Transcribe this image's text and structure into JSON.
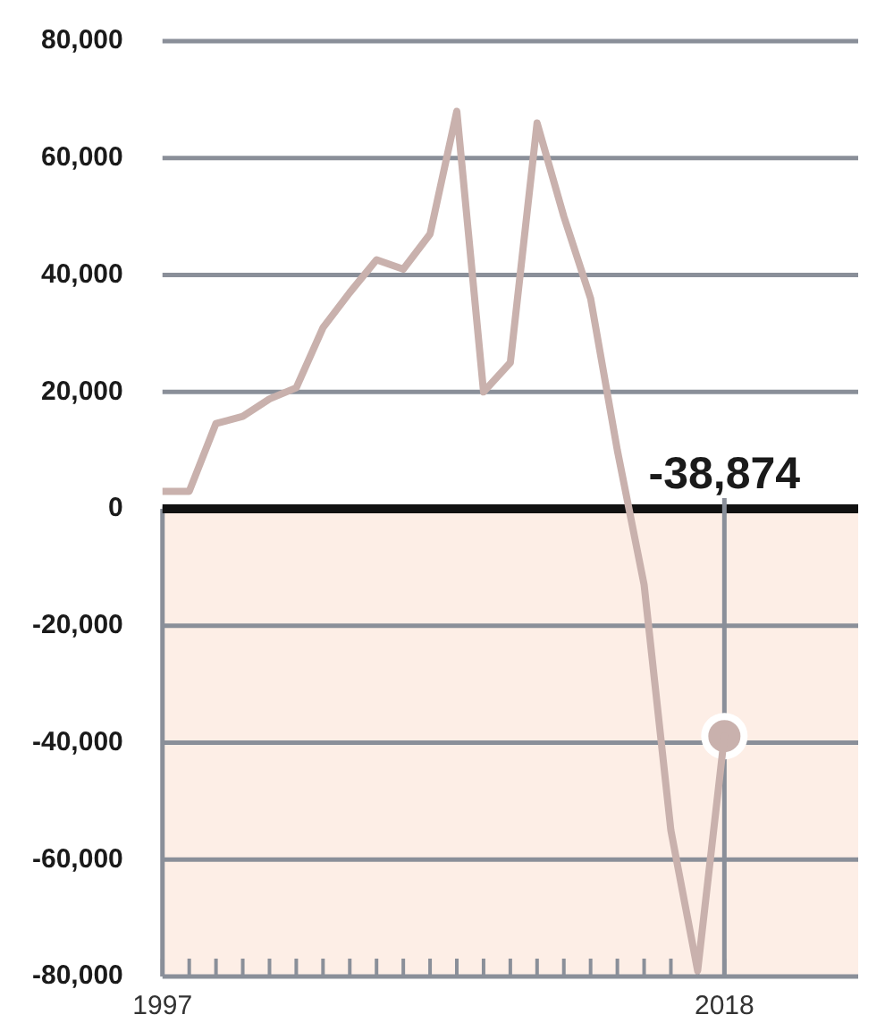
{
  "chart_data": {
    "type": "line",
    "x": [
      1997,
      1998,
      1999,
      2000,
      2001,
      2002,
      2003,
      2004,
      2005,
      2006,
      2007,
      2008,
      2009,
      2010,
      2011,
      2012,
      2013,
      2014,
      2015,
      2016,
      2017,
      2018
    ],
    "series": [
      {
        "color": "#c9b1ad",
        "values": [
          3000,
          3000,
          14600,
          15800,
          18800,
          20700,
          31000,
          37000,
          42600,
          41000,
          47000,
          68000,
          20000,
          25000,
          66000,
          50000,
          36000,
          10000,
          -13000,
          -55000,
          -79000,
          -38874
        ]
      },
      {
        "type": "scatter",
        "x": [
          2018
        ],
        "marker": "circle",
        "color": "#c9b1ad",
        "values": [
          -38874
        ]
      }
    ],
    "marker": "none",
    "xlim": [
      1997,
      2023
    ],
    "xticks": [
      {
        "value": 1997,
        "label": "1997"
      },
      {
        "value": 1998,
        "label": null
      },
      {
        "value": 1999,
        "label": null
      },
      {
        "value": 2000,
        "label": null
      },
      {
        "value": 2001,
        "label": null
      },
      {
        "value": 2002,
        "label": null
      },
      {
        "value": 2003,
        "label": null
      },
      {
        "value": 2004,
        "label": null
      },
      {
        "value": 2005,
        "label": null
      },
      {
        "value": 2006,
        "label": null
      },
      {
        "value": 2007,
        "label": null
      },
      {
        "value": 2008,
        "label": null
      },
      {
        "value": 2009,
        "label": null
      },
      {
        "value": 2010,
        "label": null
      },
      {
        "value": 2011,
        "label": null
      },
      {
        "value": 2012,
        "label": null
      },
      {
        "value": 2013,
        "label": null
      },
      {
        "value": 2014,
        "label": null
      },
      {
        "value": 2015,
        "label": null
      },
      {
        "value": 2016,
        "label": null
      },
      {
        "value": 2017,
        "label": null
      },
      {
        "value": 2018,
        "label": "2018"
      }
    ],
    "ylim": [
      -80000,
      80000
    ],
    "yticks": [
      {
        "value": -80000,
        "label": "-80,000"
      },
      {
        "value": -60000,
        "label": "-60,000"
      },
      {
        "value": -40000,
        "label": "-40,000"
      },
      {
        "value": -20000,
        "label": "-20,000"
      },
      {
        "value": 0,
        "label": "0"
      },
      {
        "value": 20000,
        "label": "20,000"
      },
      {
        "value": 40000,
        "label": "40,000"
      },
      {
        "value": 60000,
        "label": "60,000"
      },
      {
        "value": 80000,
        "label": "80,000"
      }
    ],
    "grid": "y",
    "legend": false,
    "bands": [
      {
        "axis": "y",
        "from": -80000,
        "to": 0,
        "color": "#fdeee6"
      }
    ],
    "ref_lines": [
      {
        "axis": "y",
        "value": 0,
        "color": "#111111"
      },
      {
        "axis": "x",
        "value": 2018,
        "color": "#8a8f99"
      }
    ],
    "annotations": [
      "-38,874"
    ]
  }
}
